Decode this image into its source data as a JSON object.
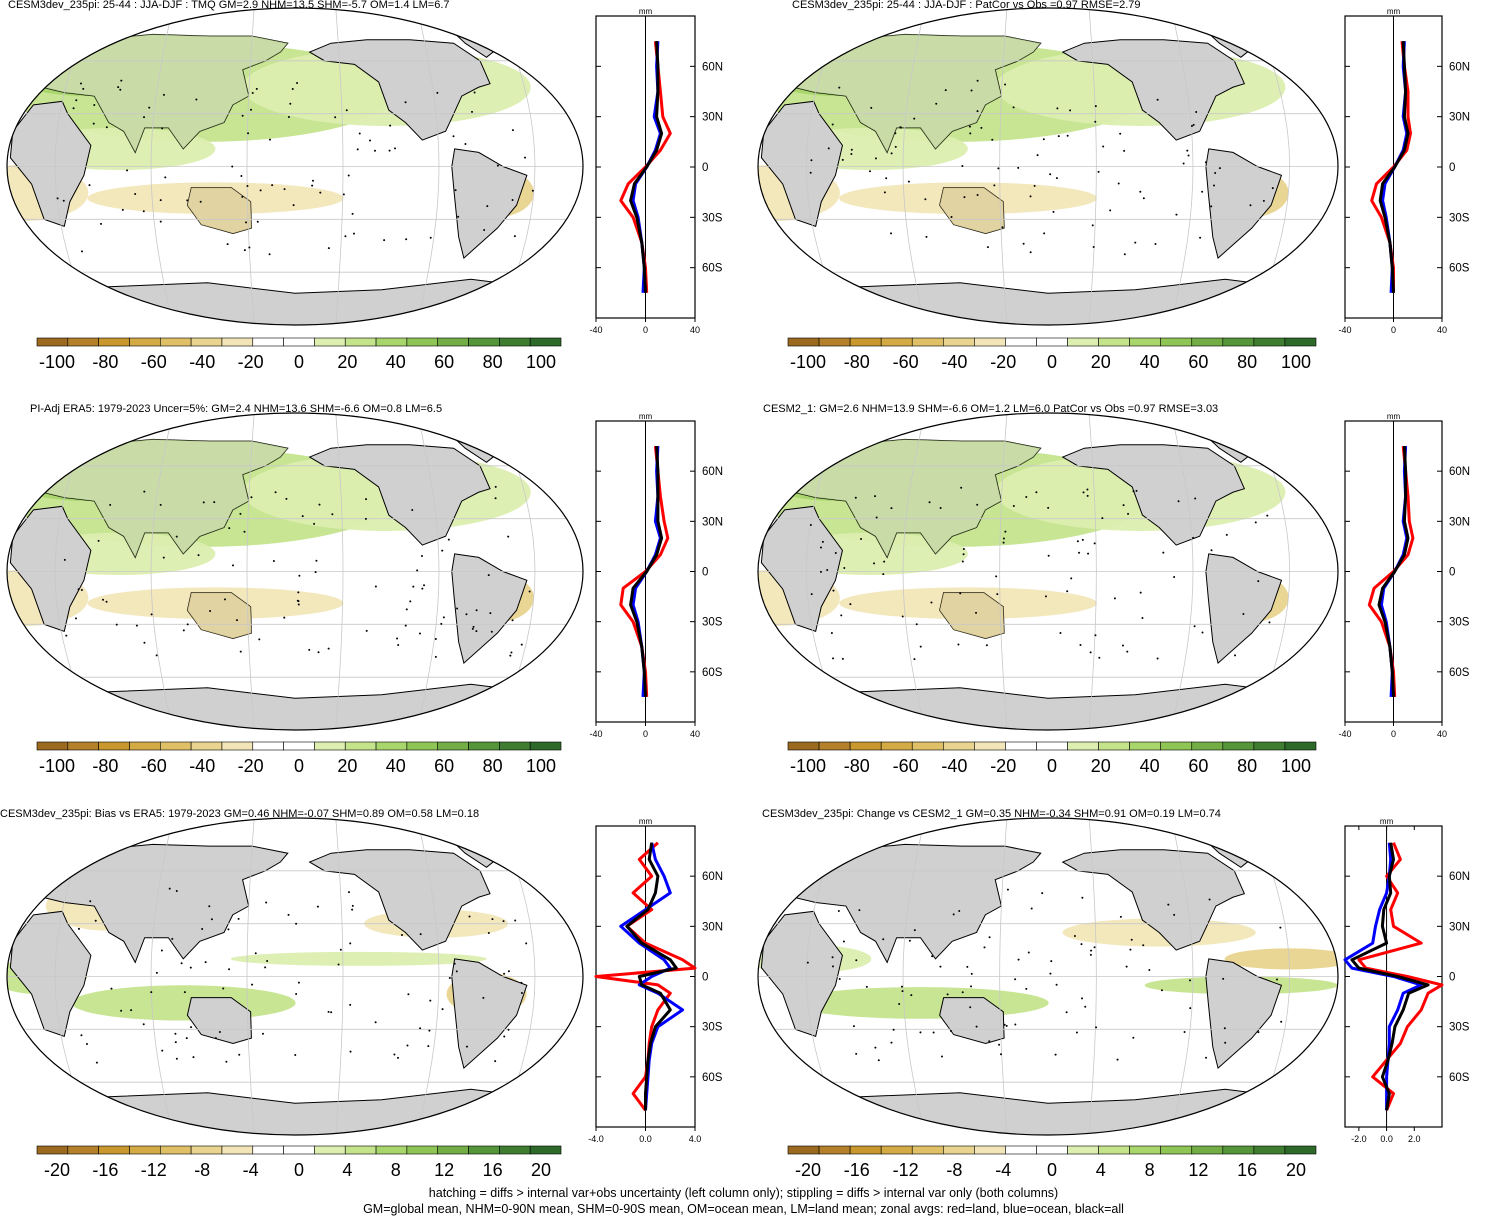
{
  "colors": {
    "land": "#d0d0d0",
    "ocean": "#ffffff",
    "neg_palette": [
      "#9b6a1e",
      "#b5802a",
      "#c8982f",
      "#d4aa45",
      "#dfc067",
      "#e8d48e",
      "#f2e6b8"
    ],
    "pos_palette": [
      "#dceeb0",
      "#c4e48c",
      "#a9d66c",
      "#8ec554",
      "#72ae45",
      "#56963a",
      "#3f7e31",
      "#2d6929"
    ],
    "line_land": "#ff0000",
    "line_ocean": "#0000ff",
    "line_all": "#000000"
  },
  "legend_note": {
    "line1": "hatching = diffs > internal var+obs uncertainty (left column only); stippling = diffs > internal var only (both columns)",
    "line2": "GM=global mean, NHM=0-90N mean, SHM=0-90S mean, OM=ocean mean, LM=land mean; zonal avgs: red=land, blue=ocean, black=all"
  },
  "chart_data": [
    {
      "type": "heatmap",
      "title": "CESM3dev_235pi: 25-44 : JJA-DJF : TMQ GM=2.9 NHM=13.5 SHM=-5.7 OM=1.4 LM=6.7",
      "colorbar_ticks": [
        "-100",
        "-80",
        "-60",
        "-40",
        "-20",
        "0",
        "20",
        "40",
        "60",
        "80",
        "100"
      ],
      "profile": {
        "unit": "mm",
        "xlim": [
          -40,
          40
        ],
        "xticks": [
          "-40",
          "0",
          "40"
        ],
        "lat_ticks": [
          "60N",
          "30N",
          "0",
          "30S",
          "60S"
        ],
        "lat": [
          75,
          60,
          45,
          30,
          20,
          10,
          0,
          -10,
          -20,
          -30,
          -45,
          -60,
          -75
        ],
        "series": [
          {
            "name": "land",
            "values": [
              8,
              10,
              12,
              14,
              20,
              12,
              0,
              -14,
              -20,
              -10,
              -3,
              0,
              1
            ]
          },
          {
            "name": "ocean",
            "values": [
              10,
              9,
              10,
              7,
              12,
              8,
              1,
              -8,
              -10,
              -6,
              -3,
              -1,
              -2
            ]
          },
          {
            "name": "all",
            "values": [
              9,
              10,
              10,
              9,
              13,
              9,
              1,
              -9,
              -12,
              -7,
              -3,
              -1,
              0
            ]
          }
        ]
      }
    },
    {
      "type": "heatmap",
      "title": "CESM3dev_235pi: 25-44 : JJA-DJF : PatCor vs Obs =0.97 RMSE=2.79",
      "colorbar_ticks": [
        "-100",
        "-80",
        "-60",
        "-40",
        "-20",
        "0",
        "20",
        "40",
        "60",
        "80",
        "100"
      ],
      "profile": {
        "unit": "mm",
        "xlim": [
          -40,
          40
        ],
        "xticks": [
          "-40",
          "0",
          "40"
        ],
        "lat_ticks": [
          "60N",
          "30N",
          "0",
          "30S",
          "60S"
        ],
        "lat": [
          75,
          60,
          45,
          30,
          20,
          10,
          0,
          -10,
          -20,
          -30,
          -45,
          -60,
          -75
        ],
        "series": [
          {
            "name": "land",
            "values": [
              7,
              9,
              12,
              12,
              14,
              11,
              0,
              -14,
              -18,
              -10,
              -3,
              0,
              0
            ]
          },
          {
            "name": "ocean",
            "values": [
              9,
              8,
              10,
              8,
              11,
              8,
              1,
              -7,
              -9,
              -6,
              -3,
              -1,
              -2
            ]
          },
          {
            "name": "all",
            "values": [
              8,
              9,
              10,
              9,
              12,
              9,
              1,
              -9,
              -11,
              -7,
              -3,
              -1,
              0
            ]
          }
        ]
      }
    },
    {
      "type": "heatmap",
      "title": "PI-Adj ERA5: 1979-2023 Uncer=5%: GM=2.4 NHM=13.6 SHM=-6.6 OM=0.8 LM=6.5",
      "colorbar_ticks": [
        "-100",
        "-80",
        "-60",
        "-40",
        "-20",
        "0",
        "20",
        "40",
        "60",
        "80",
        "100"
      ],
      "profile": {
        "unit": "mm",
        "xlim": [
          -40,
          40
        ],
        "xticks": [
          "-40",
          "0",
          "40"
        ],
        "lat_ticks": [
          "60N",
          "30N",
          "0",
          "30S",
          "60S"
        ],
        "lat": [
          75,
          60,
          45,
          30,
          20,
          10,
          0,
          -10,
          -20,
          -30,
          -45,
          -60,
          -75
        ],
        "series": [
          {
            "name": "land",
            "values": [
              8,
              10,
              12,
              15,
              18,
              12,
              0,
              -18,
              -20,
              -10,
              -3,
              0,
              1
            ]
          },
          {
            "name": "ocean",
            "values": [
              10,
              9,
              10,
              8,
              12,
              8,
              1,
              -8,
              -10,
              -6,
              -3,
              -1,
              -2
            ]
          },
          {
            "name": "all",
            "values": [
              9,
              10,
              10,
              10,
              13,
              9,
              1,
              -10,
              -12,
              -7,
              -3,
              -1,
              0
            ]
          }
        ]
      }
    },
    {
      "type": "heatmap",
      "title": "CESM2_1: GM=2.6 NHM=13.9 SHM=-6.6 OM=1.2 LM=6.0 PatCor vs Obs =0.97 RMSE=3.03",
      "colorbar_ticks": [
        "-100",
        "-80",
        "-60",
        "-40",
        "-20",
        "0",
        "20",
        "40",
        "60",
        "80",
        "100"
      ],
      "profile": {
        "unit": "mm",
        "xlim": [
          -40,
          40
        ],
        "xticks": [
          "-40",
          "0",
          "40"
        ],
        "lat_ticks": [
          "60N",
          "30N",
          "0",
          "30S",
          "60S"
        ],
        "lat": [
          75,
          60,
          45,
          30,
          20,
          10,
          0,
          -10,
          -20,
          -30,
          -45,
          -60,
          -75
        ],
        "series": [
          {
            "name": "land",
            "values": [
              8,
              10,
              12,
              13,
              16,
              12,
              0,
              -16,
              -20,
              -10,
              -3,
              0,
              1
            ]
          },
          {
            "name": "ocean",
            "values": [
              10,
              9,
              10,
              8,
              11,
              8,
              1,
              -8,
              -10,
              -6,
              -3,
              -1,
              -2
            ]
          },
          {
            "name": "all",
            "values": [
              9,
              10,
              10,
              9,
              12,
              9,
              1,
              -9,
              -12,
              -7,
              -3,
              -1,
              0
            ]
          }
        ]
      }
    },
    {
      "type": "heatmap",
      "title": "CESM3dev_235pi: Bias vs ERA5: 1979-2023 GM=0.46 NHM=-0.07 SHM=0.89 OM=0.58 LM=0.18",
      "colorbar_ticks": [
        "-20",
        "-16",
        "-12",
        "-8",
        "-4",
        "0",
        "4",
        "8",
        "12",
        "16",
        "20"
      ],
      "profile": {
        "unit": "mm",
        "xlim": [
          -4,
          4
        ],
        "xticks": [
          "-4.0",
          "0.0",
          "4.0"
        ],
        "lat_ticks": [
          "60N",
          "30N",
          "0",
          "30S",
          "60S"
        ],
        "lat": [
          80,
          70,
          60,
          50,
          40,
          30,
          20,
          10,
          5,
          0,
          -5,
          -10,
          -20,
          -30,
          -40,
          -50,
          -60,
          -70,
          -80
        ],
        "series": [
          {
            "name": "land",
            "values": [
              1,
              -0.5,
              0.5,
              -1,
              0.5,
              -1.5,
              0,
              3,
              4,
              -4,
              1,
              2,
              1,
              0.5,
              0.3,
              0.2,
              0,
              -1,
              0
            ]
          },
          {
            "name": "ocean",
            "values": [
              0.5,
              0.8,
              1.5,
              2,
              0,
              -2,
              -0.5,
              1.5,
              2,
              0.5,
              -0.5,
              1,
              3,
              1,
              0.5,
              0.3,
              0.2,
              0.1,
              0
            ]
          },
          {
            "name": "all",
            "values": [
              0.5,
              0.3,
              1,
              0.8,
              0.2,
              -1.5,
              -0.3,
              2,
              2.5,
              -0.5,
              -0.3,
              1.2,
              2,
              0.8,
              0.4,
              0.2,
              0.1,
              0,
              0
            ]
          }
        ]
      }
    },
    {
      "type": "heatmap",
      "title": "CESM3dev_235pi: Change vs CESM2_1 GM=0.35 NHM=-0.34 SHM=0.91 OM=0.19 LM=0.74",
      "colorbar_ticks": [
        "-20",
        "-16",
        "-12",
        "-8",
        "-4",
        "0",
        "4",
        "8",
        "12",
        "16",
        "20"
      ],
      "profile": {
        "unit": "mm",
        "xlim": [
          -3,
          4
        ],
        "xticks": [
          "-2.0",
          "0.0",
          "2.0"
        ],
        "lat_ticks": [
          "60N",
          "30N",
          "0",
          "30S",
          "60S"
        ],
        "lat": [
          80,
          70,
          60,
          50,
          40,
          30,
          20,
          10,
          5,
          0,
          -5,
          -10,
          -20,
          -30,
          -40,
          -50,
          -60,
          -70,
          -80
        ],
        "series": [
          {
            "name": "land",
            "values": [
              0.5,
              1,
              0,
              0.8,
              0.3,
              0.5,
              2.5,
              -2,
              -1.5,
              1.5,
              4,
              3,
              2.5,
              1.5,
              1,
              0,
              -1,
              0.5,
              0
            ]
          },
          {
            "name": "ocean",
            "values": [
              0.2,
              0.3,
              0.2,
              0,
              -0.5,
              -0.8,
              -1,
              -3,
              -2.5,
              0.5,
              2.5,
              1.2,
              0.8,
              0.2,
              0.2,
              0.1,
              0,
              0,
              0
            ]
          },
          {
            "name": "all",
            "values": [
              0.3,
              0.5,
              0.2,
              0.3,
              -0.2,
              -0.3,
              0,
              -2.5,
              -2,
              0.8,
              3,
              1.6,
              1.2,
              0.6,
              0.4,
              0.1,
              -0.3,
              0.2,
              0
            ]
          }
        ]
      }
    }
  ]
}
